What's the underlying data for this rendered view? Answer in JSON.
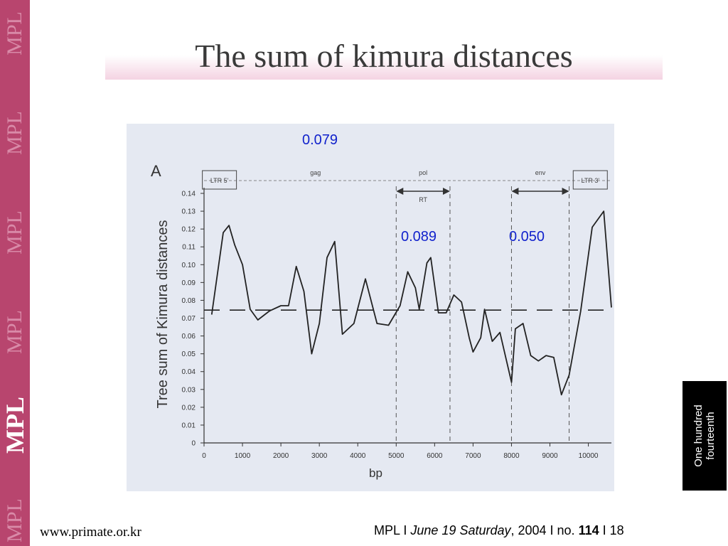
{
  "brand": {
    "mpl_repeat": "MPL",
    "mpl_main": "MPL"
  },
  "title": "The sum of kimura distances",
  "annotations": {
    "overall": "0.079",
    "rt": "0.089",
    "env": "0.050"
  },
  "side_label": "One hundred fourteenth",
  "footer": {
    "url": "www.primate.or.kr",
    "mpl": "MPL",
    "sep1": " I ",
    "date": "June 19",
    "day": "Saturday",
    "year": ", 2004 I no. ",
    "issue": "114",
    "sep2": " I ",
    "page": "18"
  },
  "chart_data": {
    "type": "line",
    "panel_label": "A",
    "xlabel": "bp",
    "ylabel": "Tree sum of  Kimura distances",
    "xlim": [
      0,
      10600
    ],
    "ylim": [
      0,
      0.14
    ],
    "x_ticks": [
      0,
      1000,
      2000,
      3000,
      4000,
      5000,
      6000,
      7000,
      8000,
      9000,
      10000
    ],
    "y_ticks": [
      "0",
      "0.01",
      "0.02",
      "0.03",
      "0.04",
      "0.05",
      "0.06",
      "0.07",
      "0.08",
      "0.09",
      "0.10",
      "0.11",
      "0.12",
      "0.13",
      "0.14"
    ],
    "reference_line": 0.0745,
    "regions": [
      {
        "label": "LTR 5'",
        "start": 0,
        "end": 800,
        "boxed": true
      },
      {
        "label": "gag",
        "start": 800,
        "end": 5000,
        "boxed": false
      },
      {
        "label": "pol",
        "start": 5000,
        "end": 6400,
        "boxed": false
      },
      {
        "label": "env",
        "start": 8000,
        "end": 9500,
        "boxed": false
      },
      {
        "label": "LTR 3'",
        "start": 9500,
        "end": 10600,
        "boxed": true
      }
    ],
    "subregion": {
      "label": "RT",
      "start": 5000,
      "end": 6400
    },
    "env_arrow": {
      "start": 8000,
      "end": 9500
    },
    "vlines": [
      5000,
      6400,
      8000,
      9500
    ],
    "series": [
      {
        "x": [
          200,
          500,
          650,
          800,
          1000,
          1200,
          1400,
          1700,
          2000,
          2200,
          2400,
          2600,
          2800,
          3000,
          3200,
          3400,
          3600,
          3900,
          4200,
          4500,
          4800,
          5100,
          5300,
          5500,
          5600,
          5800,
          5900,
          6100,
          6300,
          6500,
          6700,
          6900,
          7000,
          7200,
          7300,
          7500,
          7700,
          8000,
          8100,
          8300,
          8500,
          8700,
          8900,
          9100,
          9300,
          9500,
          9800,
          10100,
          10400,
          10600
        ],
        "y": [
          0.072,
          0.118,
          0.122,
          0.111,
          0.1,
          0.075,
          0.069,
          0.074,
          0.077,
          0.077,
          0.099,
          0.085,
          0.05,
          0.067,
          0.104,
          0.113,
          0.061,
          0.067,
          0.092,
          0.067,
          0.066,
          0.077,
          0.096,
          0.087,
          0.075,
          0.101,
          0.104,
          0.073,
          0.073,
          0.083,
          0.079,
          0.059,
          0.051,
          0.059,
          0.075,
          0.057,
          0.062,
          0.034,
          0.064,
          0.067,
          0.049,
          0.046,
          0.049,
          0.048,
          0.027,
          0.038,
          0.074,
          0.121,
          0.13,
          0.076
        ]
      }
    ]
  }
}
